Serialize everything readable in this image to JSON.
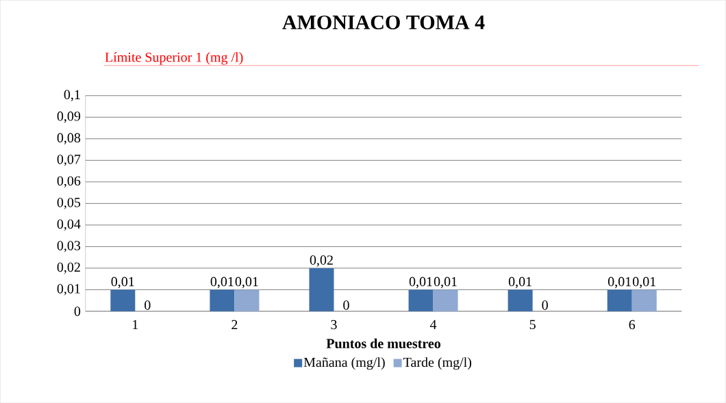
{
  "chart_data": {
    "type": "bar",
    "title": "AMONIACO TOMA 4",
    "xlabel": "Puntos de muestreo",
    "annotations": [
      "Límite Superior 1 (mg /l)"
    ],
    "categories": [
      "1",
      "2",
      "3",
      "4",
      "5",
      "6"
    ],
    "series": [
      {
        "name": "Mañana (mg/l)",
        "color": "#3d6ea8",
        "values": [
          0.01,
          0.01,
          0.02,
          0.01,
          0.01,
          0.01
        ],
        "value_labels": [
          "0,01",
          "0,01",
          "0,02",
          "0,01",
          "0,01",
          "0,01"
        ]
      },
      {
        "name": "Tarde (mg/l)",
        "color": "#8fa9d3",
        "values": [
          0,
          0.01,
          0,
          0.01,
          0,
          0.01
        ],
        "value_labels": [
          "0",
          "0,01",
          "0",
          "0,01",
          "0",
          "0,01"
        ]
      }
    ],
    "ylim": [
      0,
      0.1
    ],
    "yticks": [
      0,
      {
        "value": 0.01,
        "label": "0,01"
      },
      {
        "value": 0.02,
        "label": "0,02"
      },
      {
        "value": 0.03,
        "label": "0,03"
      },
      {
        "value": 0.04,
        "label": "0,04"
      },
      {
        "value": 0.05,
        "label": "0,05"
      },
      {
        "value": 0.06,
        "label": "0,06"
      },
      {
        "value": 0.07,
        "label": "0,07"
      },
      {
        "value": 0.08,
        "label": "0,08"
      },
      {
        "value": 0.09,
        "label": "0,09"
      },
      {
        "value": 0.1,
        "label": "0,1"
      }
    ],
    "grid": "y",
    "legend": "bottom"
  }
}
